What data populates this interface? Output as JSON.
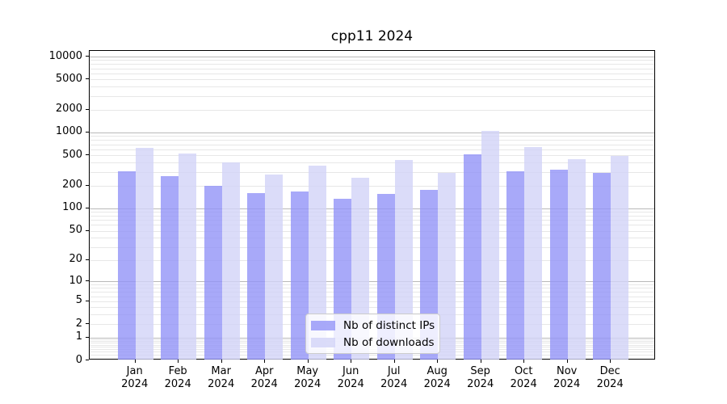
{
  "chart_data": {
    "type": "bar",
    "title": "cpp11 2024",
    "categories": [
      "Jan",
      "Feb",
      "Mar",
      "Apr",
      "May",
      "Jun",
      "Jul",
      "Aug",
      "Sep",
      "Oct",
      "Nov",
      "Dec"
    ],
    "category_year": "2024",
    "series": [
      {
        "name": "Nb of distinct IPs",
        "color": "rgba(146,147,247,0.8)",
        "values": [
          310,
          265,
          200,
          158,
          167,
          134,
          153,
          173,
          520,
          310,
          320,
          290
        ]
      },
      {
        "name": "Nb of downloads",
        "color": "rgba(210,211,248,0.8)",
        "values": [
          620,
          525,
          400,
          282,
          365,
          255,
          430,
          290,
          1060,
          640,
          450,
          485
        ]
      }
    ],
    "yscale": "log1p",
    "ylim": [
      0,
      11860
    ],
    "yticks": [
      10000,
      5000,
      2000,
      1000,
      500,
      200,
      100,
      50,
      20,
      10,
      5,
      2,
      1,
      0
    ],
    "ytick_labels": [
      "10000",
      "5000",
      "2000",
      "1000",
      "500",
      "200",
      "100",
      "50",
      "20",
      "10",
      "5",
      "2",
      "1",
      "0"
    ],
    "grid": {
      "orientation": "horizontal",
      "major_color": "#b9b9b9",
      "minor_color": "#e7e7e7"
    },
    "legend": {
      "position": "lower-center",
      "frame_color": "#cccccc"
    }
  }
}
